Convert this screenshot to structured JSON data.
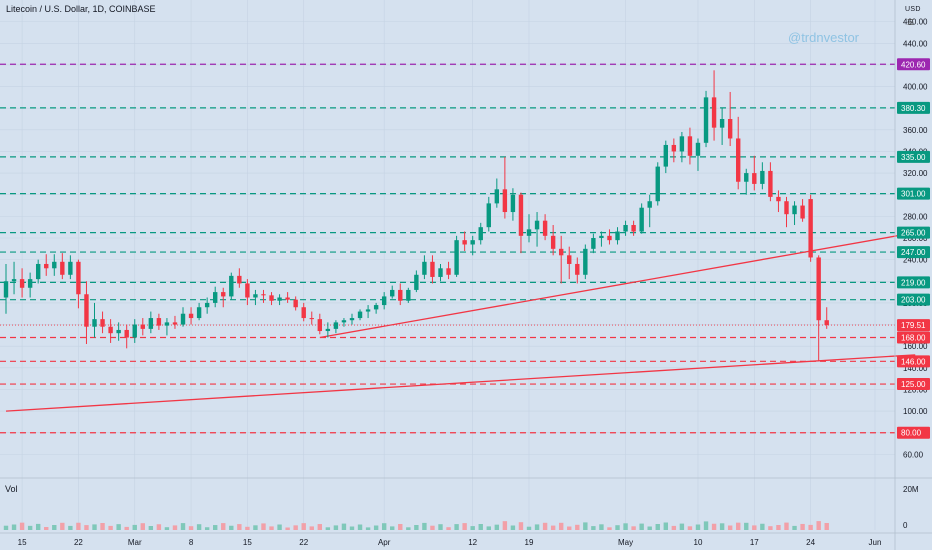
{
  "header": {
    "title": "Litecoin / U.S. Dollar, 1D, COINBASE",
    "currency": "USD",
    "watermark": "@trdnvestor"
  },
  "volume_pane": {
    "label": "Vol",
    "axis_labels": [
      "20M",
      "0"
    ]
  },
  "chart_data": {
    "type": "candlestick",
    "title": "Litecoin / U.S. Dollar, 1D, COINBASE",
    "y_range": [
      40,
      480
    ],
    "y_ticks": [
      60,
      80,
      100,
      120,
      140,
      160,
      180,
      200,
      220,
      240,
      260,
      280,
      300,
      320,
      340,
      360,
      380,
      400,
      420,
      440,
      460
    ],
    "x_range_days": [
      "2021-02-13",
      "2021-06-01"
    ],
    "x_ticks": [
      {
        "date": "2021-02-15",
        "label": "15"
      },
      {
        "date": "2021-02-22",
        "label": "22"
      },
      {
        "date": "2021-03-01",
        "label": "Mar"
      },
      {
        "date": "2021-03-08",
        "label": "8"
      },
      {
        "date": "2021-03-15",
        "label": "15"
      },
      {
        "date": "2021-03-22",
        "label": "22"
      },
      {
        "date": "2021-04-01",
        "label": "Apr"
      },
      {
        "date": "2021-04-12",
        "label": "12"
      },
      {
        "date": "2021-04-19",
        "label": "19"
      },
      {
        "date": "2021-05-01",
        "label": "May"
      },
      {
        "date": "2021-05-10",
        "label": "10"
      },
      {
        "date": "2021-05-17",
        "label": "17"
      },
      {
        "date": "2021-05-24",
        "label": "24"
      },
      {
        "date": "2021-06-01",
        "label": "Jun"
      }
    ],
    "price_levels": [
      {
        "value": 420.6,
        "label": "420.60",
        "color": "#9c27b0"
      },
      {
        "value": 380.3,
        "label": "380.30",
        "color": "#089981"
      },
      {
        "value": 335.0,
        "label": "335.00",
        "color": "#089981"
      },
      {
        "value": 301.0,
        "label": "301.00",
        "color": "#089981"
      },
      {
        "value": 265.0,
        "label": "265.00",
        "color": "#089981"
      },
      {
        "value": 247.0,
        "label": "247.00",
        "color": "#089981"
      },
      {
        "value": 219.0,
        "label": "219.00",
        "color": "#089981"
      },
      {
        "value": 203.0,
        "label": "203.00",
        "color": "#089981"
      },
      {
        "value": 168.0,
        "label": "168.00",
        "color": "#f23645"
      },
      {
        "value": 146.0,
        "label": "146.00",
        "color": "#f23645"
      },
      {
        "value": 125.0,
        "label": "125.00",
        "color": "#f23645"
      },
      {
        "value": 80.0,
        "label": "80.00",
        "color": "#f23645"
      }
    ],
    "current_price": {
      "value": 179.51,
      "label": "179.51",
      "color": "#f23645"
    },
    "trendlines": [
      {
        "from": [
          "2021-03-24",
          168
        ],
        "to": [
          "2021-06-06",
          265
        ],
        "color": "#f23645"
      },
      {
        "from": [
          "2021-02-13",
          100
        ],
        "to": [
          "2021-06-06",
          152
        ],
        "color": "#f23645"
      }
    ],
    "candles": [
      [
        "2021-02-13",
        205,
        236,
        190,
        220
      ],
      [
        "2021-02-14",
        220,
        238,
        208,
        222
      ],
      [
        "2021-02-15",
        222,
        232,
        205,
        214
      ],
      [
        "2021-02-16",
        214,
        228,
        205,
        222
      ],
      [
        "2021-02-17",
        222,
        240,
        218,
        236
      ],
      [
        "2021-02-18",
        236,
        245,
        225,
        232
      ],
      [
        "2021-02-19",
        232,
        245,
        225,
        238
      ],
      [
        "2021-02-20",
        238,
        246,
        222,
        226
      ],
      [
        "2021-02-21",
        226,
        244,
        222,
        238
      ],
      [
        "2021-02-22",
        238,
        240,
        195,
        208
      ],
      [
        "2021-02-23",
        208,
        220,
        162,
        178
      ],
      [
        "2021-02-24",
        178,
        200,
        168,
        185
      ],
      [
        "2021-02-25",
        185,
        192,
        172,
        178
      ],
      [
        "2021-02-26",
        178,
        185,
        163,
        172
      ],
      [
        "2021-02-27",
        172,
        182,
        165,
        175
      ],
      [
        "2021-02-28",
        175,
        180,
        158,
        168
      ],
      [
        "2021-03-01",
        168,
        185,
        163,
        180
      ],
      [
        "2021-03-02",
        180,
        186,
        170,
        176
      ],
      [
        "2021-03-03",
        176,
        192,
        172,
        186
      ],
      [
        "2021-03-04",
        186,
        190,
        175,
        179
      ],
      [
        "2021-03-05",
        179,
        186,
        170,
        182
      ],
      [
        "2021-03-06",
        182,
        188,
        176,
        180
      ],
      [
        "2021-03-07",
        180,
        196,
        178,
        190
      ],
      [
        "2021-03-08",
        190,
        196,
        180,
        186
      ],
      [
        "2021-03-09",
        186,
        200,
        184,
        196
      ],
      [
        "2021-03-10",
        196,
        205,
        190,
        200
      ],
      [
        "2021-03-11",
        200,
        215,
        196,
        210
      ],
      [
        "2021-03-12",
        210,
        214,
        196,
        206
      ],
      [
        "2021-03-13",
        206,
        228,
        203,
        225
      ],
      [
        "2021-03-14",
        225,
        232,
        214,
        218
      ],
      [
        "2021-03-15",
        218,
        222,
        198,
        205
      ],
      [
        "2021-03-16",
        205,
        212,
        198,
        208
      ],
      [
        "2021-03-17",
        208,
        212,
        200,
        207
      ],
      [
        "2021-03-18",
        207,
        210,
        198,
        202
      ],
      [
        "2021-03-19",
        202,
        208,
        198,
        205
      ],
      [
        "2021-03-20",
        205,
        210,
        200,
        203
      ],
      [
        "2021-03-21",
        203,
        206,
        193,
        196
      ],
      [
        "2021-03-22",
        196,
        200,
        183,
        186
      ],
      [
        "2021-03-23",
        186,
        192,
        180,
        185
      ],
      [
        "2021-03-24",
        185,
        190,
        171,
        174
      ],
      [
        "2021-03-25",
        174,
        182,
        168,
        176
      ],
      [
        "2021-03-26",
        176,
        184,
        172,
        182
      ],
      [
        "2021-03-27",
        182,
        186,
        178,
        184
      ],
      [
        "2021-03-28",
        184,
        190,
        180,
        186
      ],
      [
        "2021-03-29",
        186,
        194,
        184,
        192
      ],
      [
        "2021-03-30",
        192,
        198,
        186,
        194
      ],
      [
        "2021-03-31",
        194,
        200,
        190,
        198
      ],
      [
        "2021-04-01",
        198,
        210,
        194,
        206
      ],
      [
        "2021-04-02",
        206,
        216,
        204,
        212
      ],
      [
        "2021-04-03",
        212,
        218,
        198,
        202
      ],
      [
        "2021-04-04",
        202,
        214,
        200,
        212
      ],
      [
        "2021-04-05",
        212,
        230,
        210,
        226
      ],
      [
        "2021-04-06",
        226,
        244,
        222,
        238
      ],
      [
        "2021-04-07",
        238,
        244,
        218,
        224
      ],
      [
        "2021-04-08",
        224,
        236,
        220,
        232
      ],
      [
        "2021-04-09",
        232,
        238,
        222,
        226
      ],
      [
        "2021-04-10",
        226,
        262,
        224,
        258
      ],
      [
        "2021-04-11",
        258,
        266,
        248,
        254
      ],
      [
        "2021-04-12",
        254,
        262,
        244,
        258
      ],
      [
        "2021-04-13",
        258,
        274,
        254,
        270
      ],
      [
        "2021-04-14",
        270,
        298,
        266,
        292
      ],
      [
        "2021-04-15",
        292,
        315,
        288,
        305
      ],
      [
        "2021-04-16",
        305,
        335,
        278,
        284
      ],
      [
        "2021-04-17",
        284,
        306,
        276,
        300
      ],
      [
        "2021-04-18",
        300,
        302,
        246,
        262
      ],
      [
        "2021-04-19",
        262,
        282,
        256,
        268
      ],
      [
        "2021-04-20",
        268,
        284,
        252,
        276
      ],
      [
        "2021-04-21",
        276,
        282,
        258,
        262
      ],
      [
        "2021-04-22",
        262,
        272,
        244,
        250
      ],
      [
        "2021-04-23",
        250,
        262,
        218,
        244
      ],
      [
        "2021-04-24",
        244,
        252,
        222,
        236
      ],
      [
        "2021-04-25",
        236,
        242,
        218,
        226
      ],
      [
        "2021-04-26",
        226,
        254,
        222,
        250
      ],
      [
        "2021-04-27",
        250,
        264,
        246,
        260
      ],
      [
        "2021-04-28",
        260,
        266,
        252,
        262
      ],
      [
        "2021-04-29",
        262,
        268,
        254,
        258
      ],
      [
        "2021-04-30",
        258,
        270,
        254,
        266
      ],
      [
        "2021-05-01",
        266,
        276,
        262,
        272
      ],
      [
        "2021-05-02",
        272,
        276,
        262,
        266
      ],
      [
        "2021-05-03",
        266,
        292,
        264,
        288
      ],
      [
        "2021-05-04",
        288,
        300,
        270,
        294
      ],
      [
        "2021-05-05",
        294,
        330,
        290,
        326
      ],
      [
        "2021-05-06",
        326,
        350,
        320,
        346
      ],
      [
        "2021-05-07",
        346,
        352,
        330,
        340
      ],
      [
        "2021-05-08",
        340,
        358,
        330,
        354
      ],
      [
        "2021-05-09",
        354,
        362,
        328,
        336
      ],
      [
        "2021-05-10",
        336,
        352,
        322,
        348
      ],
      [
        "2021-05-11",
        348,
        396,
        344,
        390
      ],
      [
        "2021-05-12",
        390,
        415,
        350,
        362
      ],
      [
        "2021-05-13",
        362,
        380,
        346,
        370
      ],
      [
        "2021-05-14",
        370,
        395,
        345,
        352
      ],
      [
        "2021-05-15",
        352,
        372,
        305,
        312
      ],
      [
        "2021-05-16",
        312,
        324,
        300,
        320
      ],
      [
        "2021-05-17",
        320,
        336,
        304,
        310
      ],
      [
        "2021-05-18",
        310,
        330,
        305,
        322
      ],
      [
        "2021-05-19",
        322,
        330,
        294,
        298
      ],
      [
        "2021-05-20",
        298,
        304,
        284,
        294
      ],
      [
        "2021-05-21",
        294,
        298,
        270,
        282
      ],
      [
        "2021-05-22",
        282,
        294,
        272,
        290
      ],
      [
        "2021-05-23",
        290,
        296,
        275,
        278
      ],
      [
        "2021-05-24",
        296,
        300,
        238,
        242
      ],
      [
        "2021-05-25",
        242,
        244,
        146,
        184
      ],
      [
        "2021-05-26",
        184,
        196,
        176,
        179.51
      ]
    ],
    "volume_range": [
      0,
      25
    ]
  }
}
